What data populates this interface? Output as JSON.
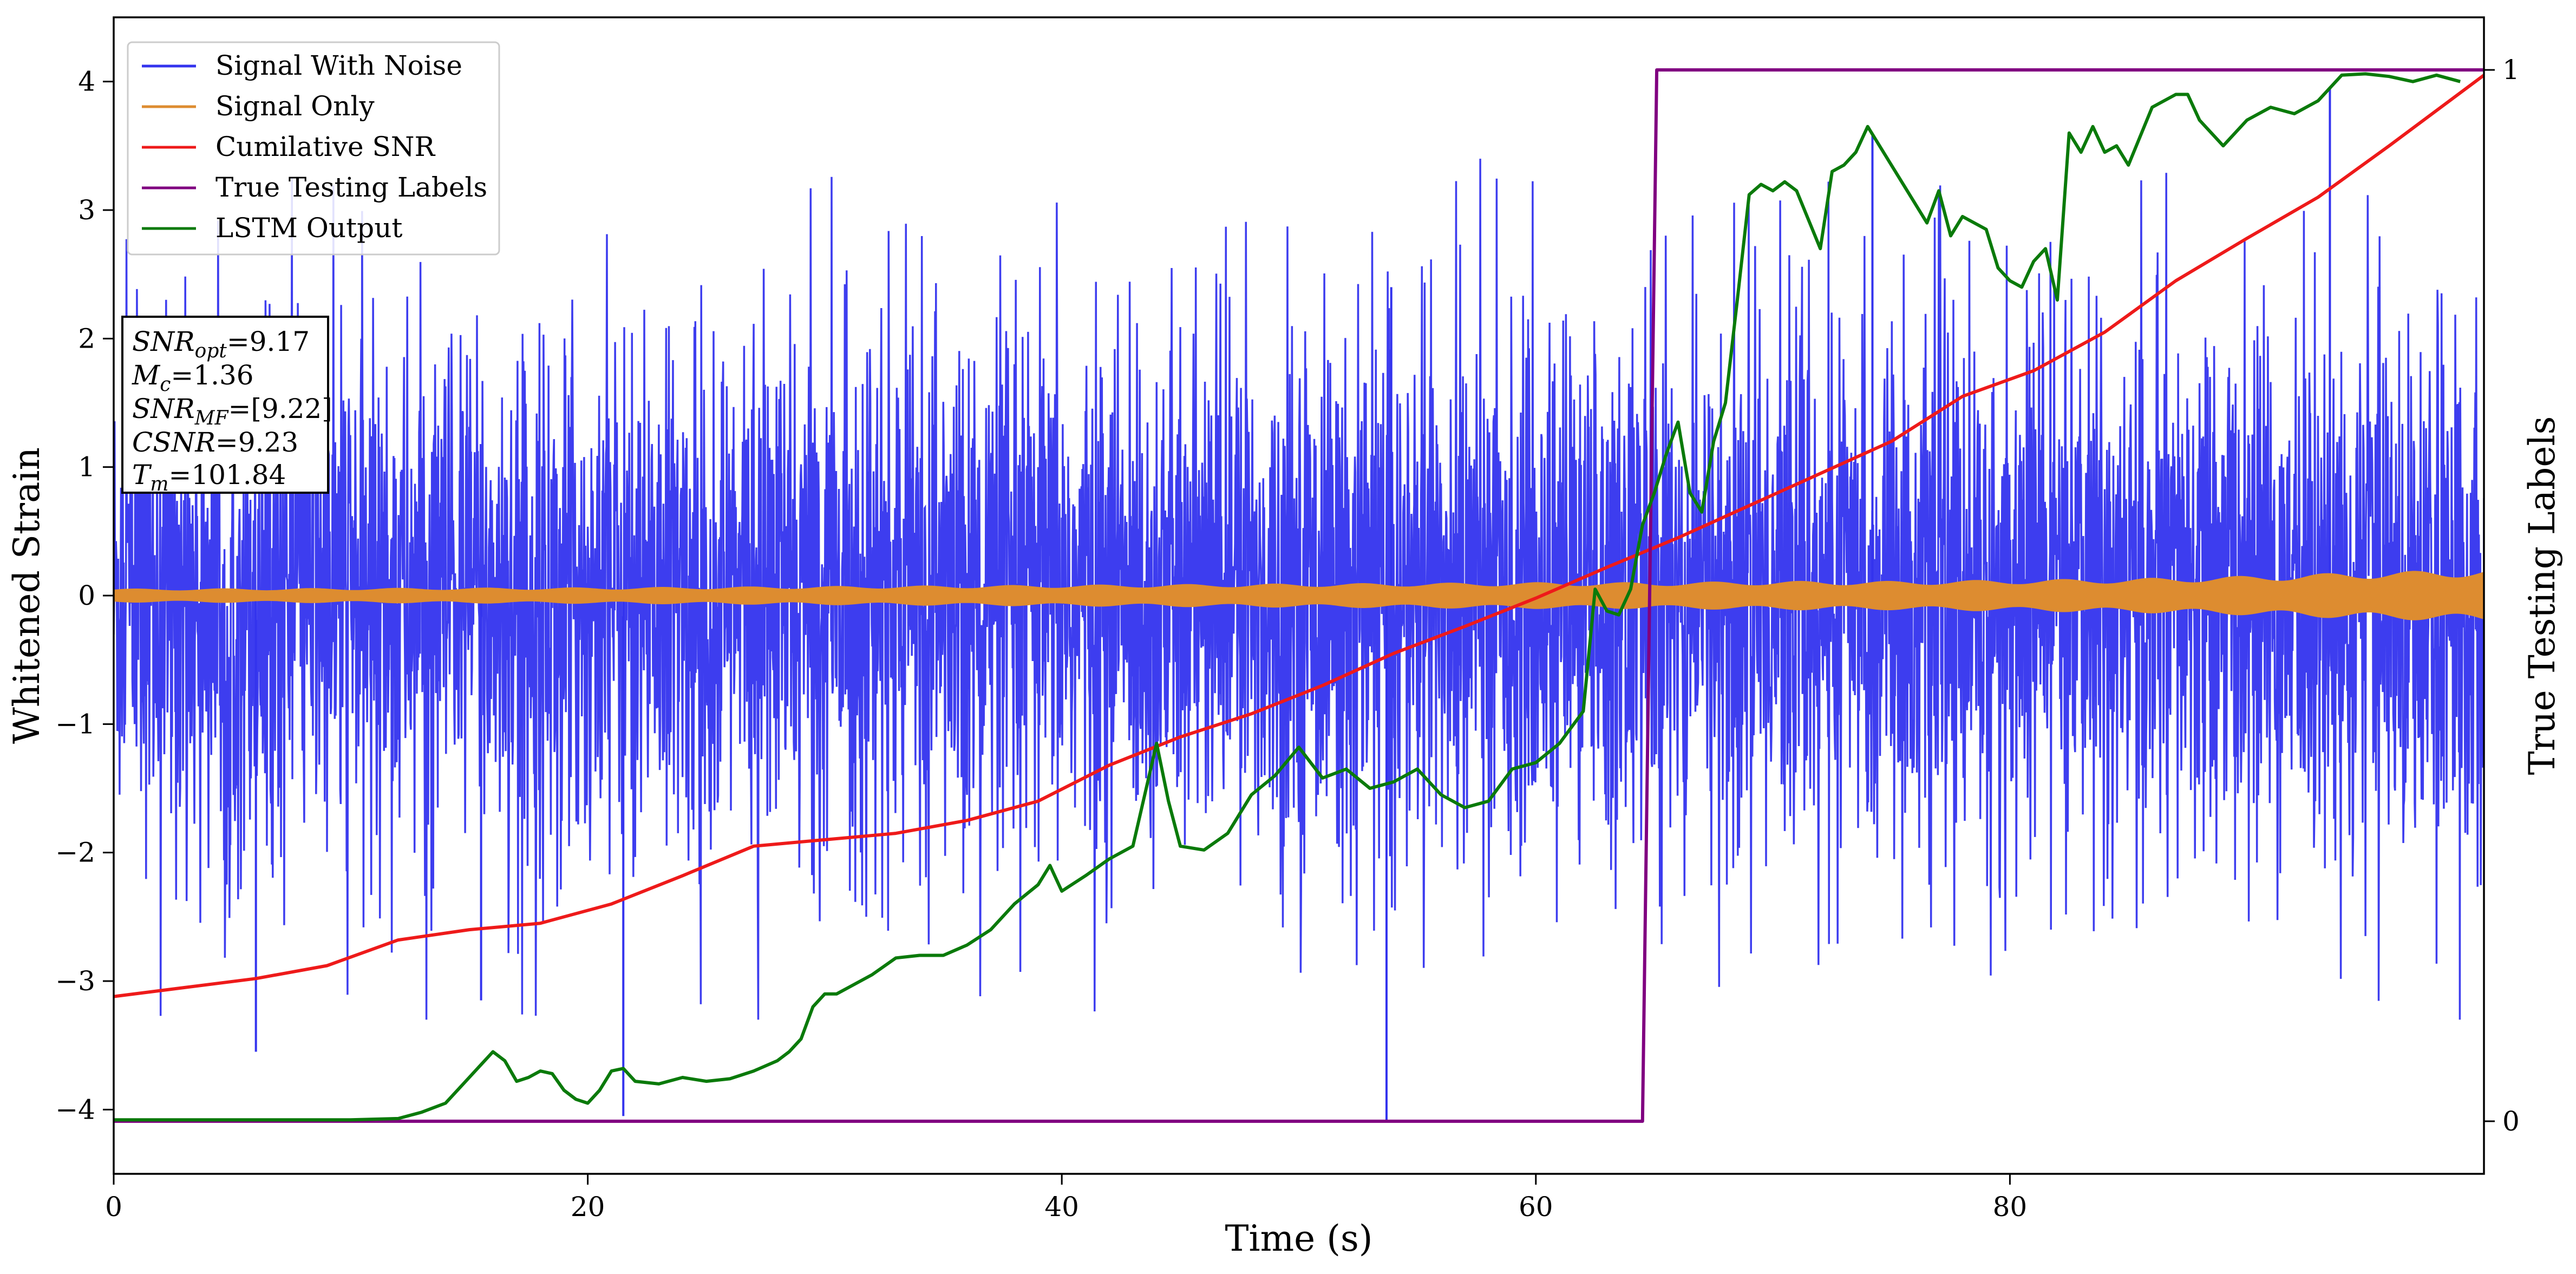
{
  "chart_data": {
    "type": "line",
    "xlabel": "Time (s)",
    "ylabel": "Whitened Strain",
    "ylabel_right": "True Testing Labels",
    "xlim": [
      0,
      100
    ],
    "ylim": [
      -4.5,
      4.5
    ],
    "ylim_right": [
      -0.05,
      1.05
    ],
    "x_ticks": [
      "0",
      "20",
      "40",
      "60",
      "80"
    ],
    "x_tick_values": [
      0,
      20,
      40,
      60,
      80
    ],
    "y_ticks": [
      "−4",
      "−3",
      "−2",
      "−1",
      "0",
      "1",
      "2",
      "3",
      "4"
    ],
    "y_tick_values": [
      -4,
      -3,
      -2,
      -1,
      0,
      1,
      2,
      3,
      4
    ],
    "y_right_ticks": [
      "0",
      "1"
    ],
    "y_right_tick_values": [
      0,
      1
    ],
    "grid": false,
    "legend_position": "top-left",
    "legend": [
      "Signal With Noise",
      "Signal Only",
      "Cumilative SNR",
      "True Testing Labels",
      "LSTM Output"
    ],
    "colors": {
      "noise": "#3333ee",
      "signal": "#dd8c30",
      "csnr": "#ee1a1a",
      "labels": "#800080",
      "lstm": "#0a7a0a"
    },
    "annotation": {
      "snr_opt": {
        "main": "SNR",
        "sub": "opt",
        "value": "=9.17"
      },
      "mc": {
        "main": "M",
        "sub": "c",
        "value": "=1.36"
      },
      "snr_mf": {
        "main": "SNR",
        "sub": "MF",
        "value": "=[9.22]"
      },
      "csnr": {
        "main": "CSNR",
        "sub": "",
        "value": "=9.23"
      },
      "tm": {
        "main": "T",
        "sub": "m",
        "value": "=101.84"
      }
    },
    "series": [
      {
        "name": "Signal With Noise",
        "axis": "left",
        "kind": "noise-band",
        "typical_amplitude": 1.3,
        "spike_max": 3.4,
        "spike_min": -3.3,
        "extreme_spikes": [
          [
            6.0,
            -3.55
          ],
          [
            15.5,
            -3.15
          ],
          [
            21.5,
            -4.05
          ],
          [
            53.7,
            -4.1
          ],
          [
            53.9,
            2.4
          ],
          [
            74.2,
            3.6
          ],
          [
            93.5,
            3.95
          ]
        ]
      },
      {
        "name": "Signal Only",
        "axis": "left",
        "kind": "envelope",
        "x": [
          0,
          20,
          40,
          50,
          60,
          65,
          70,
          75,
          80,
          85,
          90,
          95,
          100
        ],
        "amplitude": [
          0.05,
          0.06,
          0.08,
          0.09,
          0.1,
          0.1,
          0.11,
          0.11,
          0.12,
          0.13,
          0.15,
          0.18,
          0.2
        ]
      },
      {
        "name": "Cumilative SNR",
        "axis": "left",
        "x": [
          0,
          3,
          6,
          9,
          12,
          15,
          18,
          21,
          24,
          27,
          30,
          33,
          36,
          39,
          42,
          45,
          48,
          51,
          54,
          57,
          60,
          63,
          66,
          69,
          72,
          75,
          78,
          81,
          84,
          87,
          90,
          93,
          96,
          100
        ],
        "y": [
          -3.12,
          -3.05,
          -2.98,
          -2.88,
          -2.68,
          -2.6,
          -2.55,
          -2.4,
          -2.18,
          -1.95,
          -1.9,
          -1.85,
          -1.75,
          -1.6,
          -1.32,
          -1.1,
          -0.92,
          -0.7,
          -0.45,
          -0.24,
          -0.02,
          0.22,
          0.45,
          0.7,
          0.95,
          1.2,
          1.55,
          1.75,
          2.05,
          2.45,
          2.78,
          3.1,
          3.5,
          4.05
        ]
      },
      {
        "name": "True Testing Labels",
        "axis": "right",
        "x": [
          0,
          64.5,
          65.1,
          100
        ],
        "y": [
          0,
          0,
          1,
          1
        ]
      },
      {
        "name": "LSTM Output",
        "axis": "left",
        "x": [
          0,
          10,
          12,
          13,
          14,
          15,
          16,
          16.5,
          17,
          17.5,
          18,
          18.5,
          19,
          19.5,
          20,
          20.5,
          21,
          21.5,
          22,
          23,
          24,
          25,
          26,
          27,
          28,
          28.5,
          29,
          29.5,
          30,
          30.5,
          31,
          32,
          33,
          34,
          35,
          36,
          37,
          38,
          39,
          39.5,
          40,
          41,
          42,
          43,
          44,
          44.5,
          45,
          46,
          47,
          48,
          49,
          50,
          51,
          52,
          53,
          54,
          55,
          56,
          57,
          58,
          59,
          60,
          61,
          62,
          62.5,
          63,
          63.5,
          64,
          64.5,
          65,
          65.5,
          66,
          66.5,
          67,
          67.5,
          68,
          68.5,
          69,
          69.5,
          70,
          70.5,
          71,
          72,
          72.5,
          73,
          73.5,
          74,
          75,
          75.5,
          76,
          76.5,
          77,
          77.5,
          78,
          79,
          79.5,
          80,
          80.5,
          81,
          81.5,
          82,
          82.5,
          83,
          83.5,
          84,
          84.5,
          85,
          86,
          87,
          87.5,
          88,
          89,
          90,
          91,
          92,
          93,
          94,
          95,
          96,
          97,
          98,
          99
        ],
        "y": [
          -4.08,
          -4.08,
          -4.07,
          -4.02,
          -3.95,
          -3.75,
          -3.55,
          -3.62,
          -3.78,
          -3.75,
          -3.7,
          -3.72,
          -3.85,
          -3.92,
          -3.95,
          -3.85,
          -3.7,
          -3.68,
          -3.78,
          -3.8,
          -3.75,
          -3.78,
          -3.76,
          -3.7,
          -3.62,
          -3.55,
          -3.45,
          -3.2,
          -3.1,
          -3.1,
          -3.05,
          -2.95,
          -2.82,
          -2.8,
          -2.8,
          -2.72,
          -2.6,
          -2.4,
          -2.25,
          -2.1,
          -2.3,
          -2.18,
          -2.05,
          -1.95,
          -1.15,
          -1.6,
          -1.95,
          -1.98,
          -1.85,
          -1.55,
          -1.4,
          -1.18,
          -1.42,
          -1.35,
          -1.5,
          -1.45,
          -1.35,
          -1.55,
          -1.65,
          -1.6,
          -1.35,
          -1.3,
          -1.15,
          -0.9,
          0.05,
          -0.12,
          -0.15,
          0.05,
          0.55,
          0.8,
          1.1,
          1.35,
          0.8,
          0.65,
          1.2,
          1.5,
          2.3,
          3.12,
          3.2,
          3.15,
          3.22,
          3.15,
          2.7,
          3.3,
          3.35,
          3.45,
          3.65,
          3.35,
          3.2,
          3.05,
          2.9,
          3.15,
          2.8,
          2.95,
          2.85,
          2.55,
          2.45,
          2.4,
          2.6,
          2.7,
          2.3,
          3.6,
          3.45,
          3.65,
          3.45,
          3.5,
          3.35,
          3.8,
          3.9,
          3.9,
          3.7,
          3.5,
          3.7,
          3.8,
          3.75,
          3.85,
          4.05,
          4.06,
          4.04,
          4.0,
          4.05,
          4.0
        ]
      }
    ]
  }
}
